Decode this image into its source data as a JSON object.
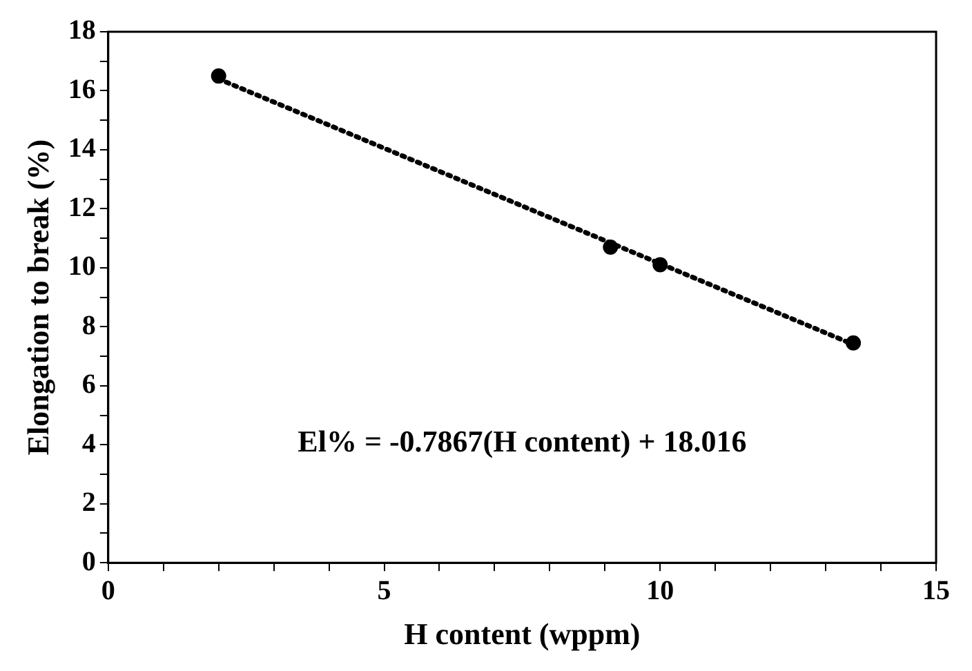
{
  "chart_data": {
    "type": "scatter",
    "xlabel": "H content (wppm)",
    "ylabel": "Elongation to break (%)",
    "xlim": [
      0,
      15
    ],
    "ylim": [
      0,
      18
    ],
    "xticks": [
      0,
      {
        "value": 1,
        "label": null
      },
      {
        "value": 2,
        "label": null
      },
      {
        "value": 3,
        "label": null
      },
      {
        "value": 4,
        "label": null
      },
      5,
      {
        "value": 6,
        "label": null
      },
      {
        "value": 7,
        "label": null
      },
      {
        "value": 8,
        "label": null
      },
      {
        "value": 9,
        "label": null
      },
      10,
      {
        "value": 11,
        "label": null
      },
      {
        "value": 12,
        "label": null
      },
      {
        "value": 13,
        "label": null
      },
      {
        "value": 14,
        "label": null
      },
      15
    ],
    "yticks": [
      0,
      {
        "value": 1,
        "label": null
      },
      2,
      {
        "value": 3,
        "label": null
      },
      4,
      {
        "value": 5,
        "label": null
      },
      6,
      {
        "value": 7,
        "label": null
      },
      8,
      {
        "value": 9,
        "label": null
      },
      10,
      {
        "value": 11,
        "label": null
      },
      12,
      {
        "value": 13,
        "label": null
      },
      14,
      {
        "value": 15,
        "label": null
      },
      16,
      {
        "value": 17,
        "label": null
      },
      18
    ],
    "grid": false,
    "legend": false,
    "series": [
      {
        "type": "scatter",
        "color": "#000000",
        "marker": "circle",
        "x": [
          2,
          9.1,
          10,
          13.5
        ],
        "values": [
          16.5,
          10.7,
          10.1,
          7.45
        ]
      },
      {
        "type": "line",
        "color": "#000000",
        "marker": "none",
        "line_style": "dotted",
        "x": [
          2,
          13.5
        ],
        "values": [
          16.4,
          7.4
        ]
      }
    ],
    "annotations": [
      "El% = -0.7867(H content) + 18.016"
    ]
  }
}
